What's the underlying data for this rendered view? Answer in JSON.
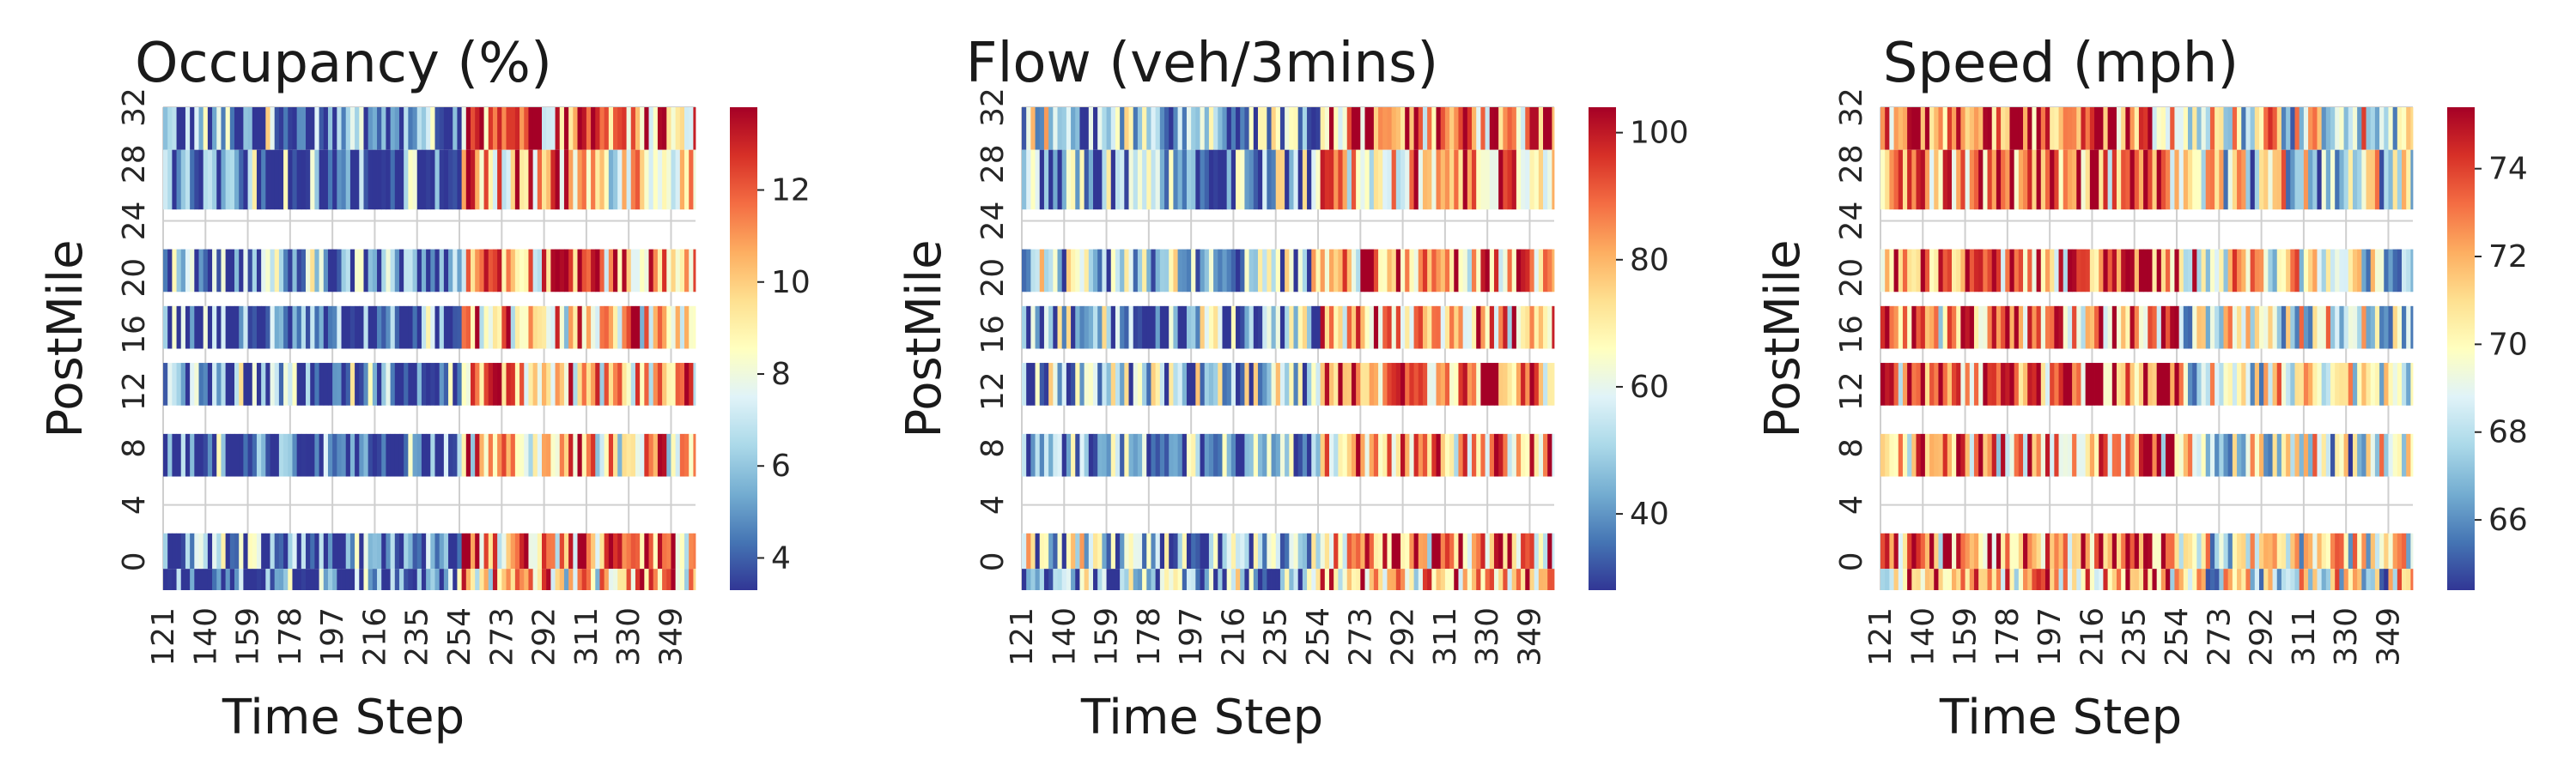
{
  "colormap": [
    "#313695",
    "#4575b4",
    "#74add1",
    "#abd9e9",
    "#e0f3f8",
    "#ffffbf",
    "#fee090",
    "#fdae61",
    "#f46d43",
    "#d73027",
    "#a50026"
  ],
  "chart_data": [
    {
      "type": "heatmap",
      "title": "Occupancy (%)",
      "xlabel": "Time Step",
      "ylabel": "PostMile",
      "x_range": [
        121,
        360
      ],
      "x_ticks": [
        "121",
        "140",
        "159",
        "178",
        "197",
        "216",
        "235",
        "254",
        "273",
        "292",
        "311",
        "330",
        "349"
      ],
      "y_ticks": [
        "32",
        "28",
        "24",
        "20",
        "16",
        "12",
        "8",
        "4",
        "0"
      ],
      "postmile_range": [
        -2,
        32
      ],
      "bands": [
        [
          29,
          32
        ],
        [
          24.8,
          29
        ],
        [
          19,
          22
        ],
        [
          15,
          18
        ],
        [
          11,
          14
        ],
        [
          6,
          9
        ],
        [
          -0.5,
          2
        ],
        [
          -2,
          -0.5
        ]
      ],
      "colorbar_ticks": [
        4,
        6,
        8,
        10,
        12
      ],
      "colorbar_range": [
        3.3,
        13.8
      ],
      "segments": [
        [
          121,
          255,
          4.5
        ],
        [
          255,
          360,
          10.5
        ]
      ],
      "grid": true
    },
    {
      "type": "heatmap",
      "title": "Flow (veh/3mins)",
      "xlabel": "Time Step",
      "ylabel": "PostMile",
      "x_range": [
        121,
        360
      ],
      "x_ticks": [
        "121",
        "140",
        "159",
        "178",
        "197",
        "216",
        "235",
        "254",
        "273",
        "292",
        "311",
        "330",
        "349"
      ],
      "y_ticks": [
        "32",
        "28",
        "24",
        "20",
        "16",
        "12",
        "8",
        "4",
        "0"
      ],
      "postmile_range": [
        -2,
        32
      ],
      "bands": [
        [
          29,
          32
        ],
        [
          24.8,
          29
        ],
        [
          19,
          22
        ],
        [
          15,
          18
        ],
        [
          11,
          14
        ],
        [
          6,
          9
        ],
        [
          -0.5,
          2
        ],
        [
          -2,
          -0.5
        ]
      ],
      "colorbar_ticks": [
        40,
        60,
        80,
        100
      ],
      "colorbar_range": [
        28,
        104
      ],
      "segments": [
        [
          121,
          255,
          46
        ],
        [
          255,
          360,
          82
        ]
      ],
      "grid": true
    },
    {
      "type": "heatmap",
      "title": "Speed (mph)",
      "xlabel": "Time Step",
      "ylabel": "PostMile",
      "x_range": [
        121,
        360
      ],
      "x_ticks": [
        "121",
        "140",
        "159",
        "178",
        "197",
        "216",
        "235",
        "254",
        "273",
        "292",
        "311",
        "330",
        "349"
      ],
      "y_ticks": [
        "32",
        "28",
        "24",
        "20",
        "16",
        "12",
        "8",
        "4",
        "0"
      ],
      "postmile_range": [
        -2,
        32
      ],
      "bands": [
        [
          29,
          32
        ],
        [
          24.8,
          29
        ],
        [
          19,
          22
        ],
        [
          15,
          18
        ],
        [
          11,
          14
        ],
        [
          6,
          9
        ],
        [
          -0.5,
          2
        ],
        [
          -2,
          -0.5
        ]
      ],
      "colorbar_ticks": [
        66,
        68,
        70,
        72,
        74
      ],
      "colorbar_range": [
        64.4,
        75.4
      ],
      "segments": [
        [
          121,
          255,
          72.5
        ],
        [
          255,
          360,
          69.5
        ]
      ],
      "grid": true
    }
  ]
}
